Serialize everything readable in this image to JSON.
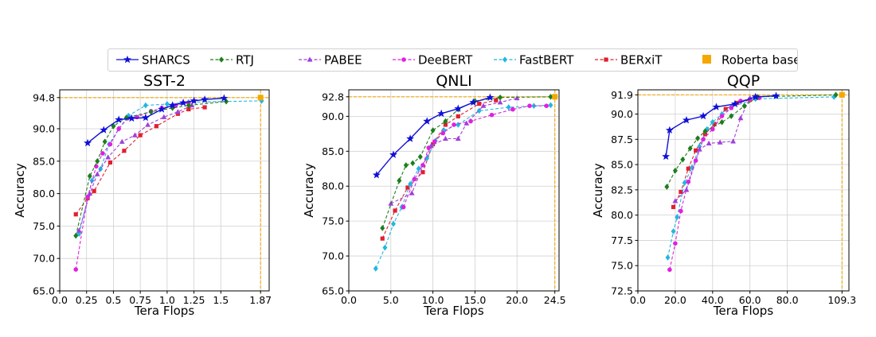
{
  "legend": {
    "placement": "top-center",
    "entries": [
      {
        "name": "SHARCS",
        "color": "#1010d8",
        "marker": "star",
        "dash": "solid"
      },
      {
        "name": "RTJ",
        "color": "#1e7d1e",
        "marker": "diamond",
        "dash": "dashed"
      },
      {
        "name": "PABEE",
        "color": "#a040d8",
        "marker": "triangle",
        "dash": "dashed"
      },
      {
        "name": "DeeBERT",
        "color": "#e020e0",
        "marker": "circle",
        "dash": "dashed"
      },
      {
        "name": "FastBERT",
        "color": "#20b8e0",
        "marker": "diamond",
        "dash": "dashed"
      },
      {
        "name": "BERxiT",
        "color": "#e02030",
        "marker": "square",
        "dash": "dashed"
      },
      {
        "name": "Roberta base",
        "color": "#f5a800",
        "marker": "square",
        "dash": "none"
      }
    ]
  },
  "chart_data": [
    {
      "type": "line",
      "title": "SST-2",
      "xlabel": "Tera Flops",
      "ylabel": "Accuracy",
      "xlim": [
        0,
        1.95
      ],
      "ylim": [
        65,
        96
      ],
      "xticks": [
        0.0,
        0.25,
        0.5,
        0.75,
        1.0,
        1.25,
        1.5,
        1.87
      ],
      "xtick_labels": [
        "0.0",
        "0.25",
        "0.5",
        "0.75",
        "1.0",
        "1.25",
        "1.5",
        "1.87"
      ],
      "yticks": [
        65,
        70,
        75,
        80,
        85,
        90,
        94.8
      ],
      "ytick_labels": [
        "65.0",
        "70.0",
        "75.0",
        "80.0",
        "85.0",
        "90.0",
        "94.8"
      ],
      "grid": true,
      "baseline": {
        "x": 1.87,
        "y": 94.8
      },
      "series": [
        {
          "name": "SHARCS",
          "x": [
            0.26,
            0.41,
            0.55,
            0.67,
            0.8,
            0.95,
            1.05,
            1.15,
            1.25,
            1.35,
            1.53
          ],
          "y": [
            87.8,
            89.8,
            91.4,
            91.6,
            91.7,
            93.0,
            93.6,
            94.0,
            94.3,
            94.5,
            94.7
          ]
        },
        {
          "name": "RTJ",
          "x": [
            0.15,
            0.28,
            0.35,
            0.42,
            0.5,
            0.62,
            0.85,
            1.05,
            1.2,
            1.55
          ],
          "y": [
            73.5,
            82.7,
            85.0,
            88.0,
            90.4,
            91.7,
            92.6,
            93.2,
            93.6,
            94.2
          ]
        },
        {
          "name": "PABEE",
          "x": [
            0.18,
            0.28,
            0.35,
            0.45,
            0.58,
            0.7,
            0.82,
            0.97,
            1.1,
            1.23
          ],
          "y": [
            74.3,
            80.0,
            83.0,
            85.6,
            88.0,
            89.0,
            90.6,
            91.8,
            92.6,
            93.6
          ]
        },
        {
          "name": "DeeBERT",
          "x": [
            0.15,
            0.26,
            0.34,
            0.4,
            0.47,
            0.55,
            0.63,
            0.72,
            0.85,
            0.95,
            1.08,
            1.2
          ],
          "y": [
            68.3,
            79.5,
            84.2,
            86.2,
            87.6,
            90.0,
            91.6,
            91.8,
            92.7,
            93.2,
            93.6,
            94.0
          ]
        },
        {
          "name": "FastBERT",
          "x": [
            0.18,
            0.3,
            0.38,
            0.46,
            0.55,
            0.64,
            0.8,
            1.0,
            1.2,
            1.88
          ],
          "y": [
            73.8,
            82.0,
            83.8,
            87.6,
            90.0,
            92.0,
            93.6,
            93.8,
            94.1,
            94.3
          ]
        },
        {
          "name": "BERxiT",
          "x": [
            0.15,
            0.26,
            0.32,
            0.47,
            0.6,
            0.75,
            0.9,
            1.1,
            1.2,
            1.35
          ],
          "y": [
            76.8,
            79.3,
            80.4,
            84.8,
            86.6,
            89.0,
            90.4,
            92.3,
            93.0,
            93.3
          ]
        }
      ]
    },
    {
      "type": "line",
      "title": "QNLI",
      "xlabel": "Tera Flops",
      "ylabel": "Accuracy",
      "xlim": [
        0,
        25
      ],
      "ylim": [
        65,
        93.8
      ],
      "xticks": [
        0,
        5,
        10,
        15,
        20,
        24.5
      ],
      "xtick_labels": [
        "0.0",
        "5.0",
        "10.0",
        "15.0",
        "20.0",
        "24.5"
      ],
      "yticks": [
        65,
        70,
        75,
        80,
        85,
        90,
        92.8
      ],
      "ytick_labels": [
        "65.0",
        "70.0",
        "75.0",
        "80.0",
        "85.0",
        "90.0",
        "92.8"
      ],
      "grid": true,
      "baseline": {
        "x": 24.5,
        "y": 92.8
      },
      "series": [
        {
          "name": "SHARCS",
          "x": [
            3.3,
            5.3,
            7.3,
            9.3,
            11.0,
            13.0,
            14.8,
            16.8
          ],
          "y": [
            81.6,
            84.5,
            86.8,
            89.3,
            90.4,
            91.1,
            92.0,
            92.7
          ]
        },
        {
          "name": "RTJ",
          "x": [
            4.0,
            6.0,
            6.8,
            7.6,
            8.5,
            10.0,
            11.5,
            13.0,
            15.0,
            18.0,
            24.0
          ],
          "y": [
            74.0,
            80.8,
            83.0,
            83.3,
            84.2,
            88.0,
            89.3,
            91.0,
            92.2,
            92.7,
            92.8
          ]
        },
        {
          "name": "PABEE",
          "x": [
            5.0,
            7.5,
            9.8,
            11.5,
            13.0,
            14.0,
            16.0,
            18.0,
            20.0
          ],
          "y": [
            77.5,
            79.0,
            85.8,
            86.8,
            86.8,
            89.0,
            91.5,
            92.0,
            92.6
          ]
        },
        {
          "name": "DeeBERT",
          "x": [
            6.5,
            7.8,
            8.8,
            9.5,
            10.2,
            11.2,
            12.5,
            14.5,
            17.0,
            19.5,
            21.5,
            23.5
          ],
          "y": [
            77.0,
            81.0,
            83.0,
            85.5,
            86.4,
            87.6,
            88.8,
            89.3,
            90.2,
            91.0,
            91.5,
            91.5
          ]
        },
        {
          "name": "FastBERT",
          "x": [
            3.2,
            4.3,
            5.3,
            6.3,
            7.3,
            8.3,
            9.3,
            10.3,
            11.3,
            13.0,
            15.5,
            19.0,
            22.0,
            24.0
          ],
          "y": [
            68.2,
            71.2,
            74.6,
            77.0,
            80.3,
            82.5,
            84.0,
            86.5,
            88.0,
            88.8,
            90.8,
            91.3,
            91.5,
            91.6
          ]
        },
        {
          "name": "BERxiT",
          "x": [
            4.0,
            5.5,
            7.0,
            8.8,
            10.0,
            11.5,
            13.0,
            15.5,
            17.5
          ],
          "y": [
            72.5,
            76.5,
            79.8,
            82.0,
            86.0,
            88.8,
            90.0,
            91.8,
            92.3
          ]
        }
      ]
    },
    {
      "type": "line",
      "title": "QQP",
      "xlabel": "Tera Flops",
      "ylabel": "Accuracy",
      "xlim": [
        0,
        113
      ],
      "ylim": [
        72.5,
        92.4
      ],
      "xticks": [
        0,
        20,
        40,
        60,
        80,
        109.3
      ],
      "xtick_labels": [
        "0.0",
        "20.0",
        "40.0",
        "60.0",
        "80.0",
        "109.3"
      ],
      "yticks": [
        72.5,
        75,
        77.5,
        80,
        82.5,
        85,
        87.5,
        90,
        91.9
      ],
      "ytick_labels": [
        "72.5",
        "75.0",
        "77.5",
        "80.0",
        "82.5",
        "85.0",
        "87.5",
        "90.0",
        "91.9"
      ],
      "grid": true,
      "baseline": {
        "x": 109.3,
        "y": 91.9
      },
      "series": [
        {
          "name": "SHARCS",
          "x": [
            15.0,
            17.0,
            26.0,
            35.0,
            42.0,
            52.0,
            63.0,
            74.0
          ],
          "y": [
            85.8,
            88.4,
            89.4,
            89.8,
            90.7,
            91.0,
            91.7,
            91.8
          ]
        },
        {
          "name": "RTJ",
          "x": [
            15.5,
            20.0,
            24.0,
            28.0,
            32.0,
            36.0,
            45.0,
            50.0,
            57.0,
            64.0,
            106.0
          ],
          "y": [
            82.8,
            84.4,
            85.5,
            86.6,
            87.6,
            88.3,
            89.2,
            89.8,
            90.8,
            91.7,
            91.9
          ]
        },
        {
          "name": "PABEE",
          "x": [
            20.0,
            26.0,
            33.0,
            38.0,
            44.0,
            51.0,
            55.0,
            60.0
          ],
          "y": [
            81.4,
            82.5,
            86.5,
            87.1,
            87.2,
            87.3,
            89.6,
            91.6
          ]
        },
        {
          "name": "DeeBERT",
          "x": [
            17.0,
            20.0,
            23.0,
            27.0,
            31.0,
            35.0,
            40.0,
            45.0,
            50.0,
            55.0,
            60.0,
            65.0
          ],
          "y": [
            74.6,
            77.2,
            80.4,
            83.3,
            85.4,
            87.5,
            88.5,
            89.8,
            90.6,
            91.3,
            91.5,
            91.6
          ]
        },
        {
          "name": "FastBERT",
          "x": [
            16.0,
            19.0,
            21.0,
            25.0,
            29.0,
            33.0,
            37.0,
            40.0,
            45.0,
            50.0,
            63.0,
            105.0
          ],
          "y": [
            75.8,
            78.4,
            79.8,
            83.2,
            84.7,
            86.8,
            88.5,
            89.2,
            90.0,
            90.7,
            91.5,
            91.7
          ]
        },
        {
          "name": "BERxiT",
          "x": [
            19.0,
            23.0,
            27.0,
            31.0,
            36.0,
            41.0,
            47.0,
            53.0,
            60.0
          ],
          "y": [
            80.8,
            82.3,
            84.6,
            86.4,
            88.0,
            89.0,
            90.5,
            91.1,
            91.4
          ]
        }
      ]
    }
  ]
}
